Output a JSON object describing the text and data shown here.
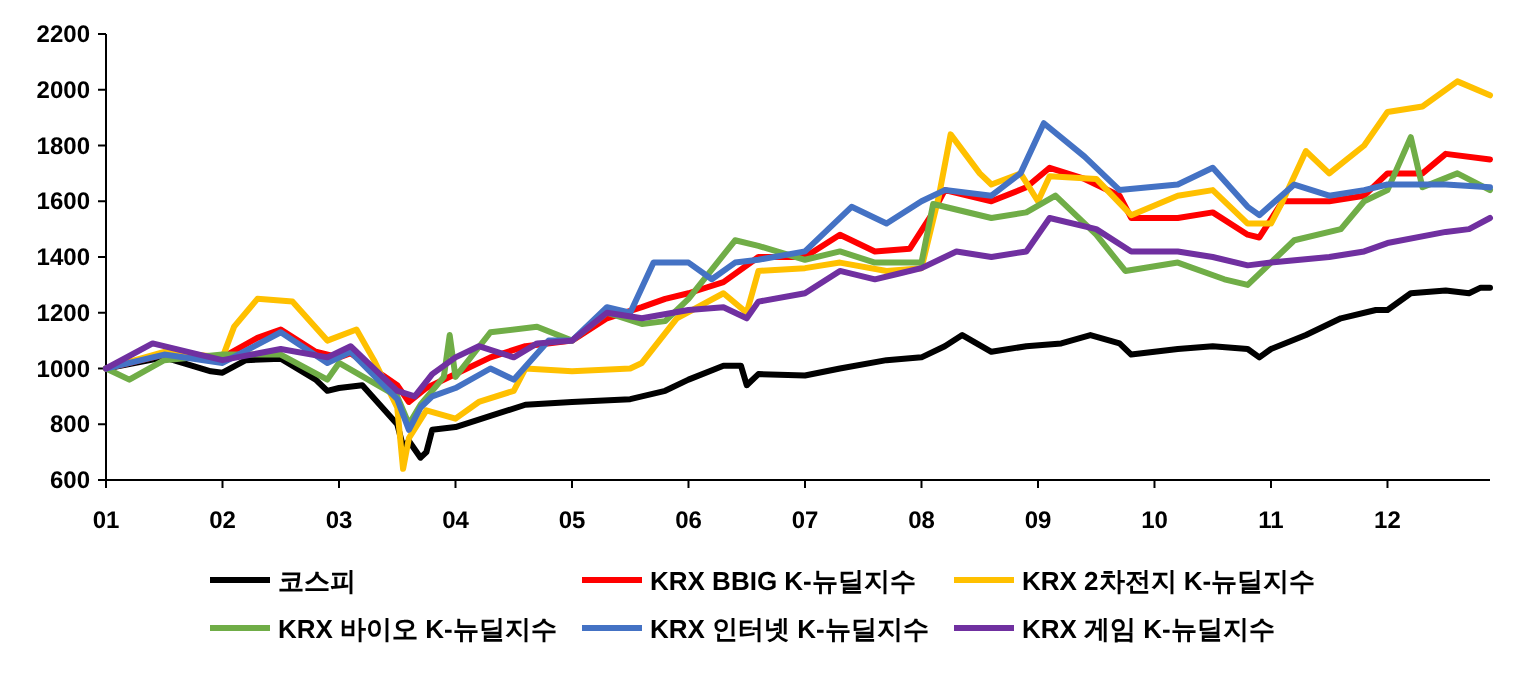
{
  "chart_data": {
    "type": "line",
    "xlim": [
      1,
      12.88
    ],
    "ylim": [
      600,
      2200
    ],
    "xticks": [
      {
        "value": 1,
        "label": "01"
      },
      {
        "value": 2,
        "label": "02"
      },
      {
        "value": 3,
        "label": "03"
      },
      {
        "value": 4,
        "label": "04"
      },
      {
        "value": 5,
        "label": "05"
      },
      {
        "value": 6,
        "label": "06"
      },
      {
        "value": 7,
        "label": "07"
      },
      {
        "value": 8,
        "label": "08"
      },
      {
        "value": 9,
        "label": "09"
      },
      {
        "value": 10,
        "label": "10"
      },
      {
        "value": 11,
        "label": "11"
      },
      {
        "value": 12,
        "label": "12"
      }
    ],
    "yticks": [
      600,
      800,
      1000,
      1200,
      1400,
      1600,
      1800,
      2000,
      2200
    ],
    "grid": false,
    "legend": "bottom",
    "marker": "none",
    "line_style": "solid",
    "series": [
      {
        "name": "코스피",
        "color": "#000000",
        "x": [
          1,
          1.5,
          1.9,
          2,
          2.2,
          2.5,
          2.8,
          2.9,
          3,
          3.2,
          3.5,
          3.55,
          3.6,
          3.7,
          3.75,
          3.8,
          4,
          4.3,
          4.6,
          5,
          5.5,
          5.8,
          6,
          6.3,
          6.45,
          6.5,
          6.6,
          7,
          7.3,
          7.7,
          8,
          8.2,
          8.35,
          8.6,
          8.9,
          9.2,
          9.45,
          9.7,
          9.8,
          10.2,
          10.5,
          10.8,
          10.9,
          11,
          11.3,
          11.6,
          11.9,
          12,
          12.2,
          12.5,
          12.7,
          12.8,
          12.88
        ],
        "values": [
          1000,
          1040,
          990,
          985,
          1030,
          1035,
          960,
          920,
          930,
          940,
          800,
          720,
          740,
          680,
          700,
          780,
          790,
          830,
          870,
          880,
          890,
          920,
          960,
          1010,
          1010,
          940,
          980,
          975,
          1000,
          1030,
          1040,
          1080,
          1120,
          1060,
          1080,
          1090,
          1120,
          1090,
          1050,
          1070,
          1080,
          1070,
          1040,
          1070,
          1120,
          1180,
          1210,
          1210,
          1270,
          1280,
          1270,
          1290,
          1290
        ]
      },
      {
        "name": "KRX BBIG K-뉴딜지수",
        "color": "#ff0000",
        "x": [
          1,
          1.5,
          2,
          2.3,
          2.5,
          2.8,
          3,
          3.1,
          3.5,
          3.6,
          3.75,
          4,
          4.3,
          4.6,
          5,
          5.3,
          5.6,
          5.8,
          6,
          6.3,
          6.6,
          7,
          7.3,
          7.6,
          7.9,
          8.1,
          8.2,
          8.6,
          8.9,
          9.1,
          9.4,
          9.7,
          9.8,
          10.2,
          10.5,
          10.8,
          10.9,
          11.1,
          11.5,
          11.8,
          12,
          12.3,
          12.5,
          12.88
        ],
        "values": [
          1000,
          1050,
          1040,
          1110,
          1140,
          1060,
          1040,
          1055,
          940,
          880,
          930,
          980,
          1040,
          1080,
          1100,
          1180,
          1220,
          1250,
          1270,
          1310,
          1400,
          1400,
          1480,
          1420,
          1430,
          1560,
          1640,
          1600,
          1650,
          1720,
          1680,
          1620,
          1540,
          1540,
          1560,
          1480,
          1470,
          1600,
          1600,
          1620,
          1700,
          1700,
          1770,
          1750
        ]
      },
      {
        "name": "KRX 2차전지 K-뉴딜지수",
        "color": "#ffc000",
        "x": [
          1,
          1.5,
          2,
          2.1,
          2.3,
          2.6,
          2.9,
          3.15,
          3.3,
          3.5,
          3.55,
          3.6,
          3.75,
          4,
          4.2,
          4.5,
          4.6,
          5,
          5.5,
          5.6,
          5.9,
          6.3,
          6.5,
          6.6,
          7,
          7.3,
          7.7,
          8,
          8.15,
          8.25,
          8.5,
          8.6,
          8.85,
          9,
          9.1,
          9.5,
          9.8,
          10.2,
          10.5,
          10.8,
          11,
          11.1,
          11.3,
          11.5,
          11.8,
          12,
          12.3,
          12.6,
          12.88
        ],
        "values": [
          1000,
          1060,
          1040,
          1150,
          1250,
          1240,
          1100,
          1140,
          1030,
          860,
          640,
          750,
          850,
          820,
          880,
          920,
          1000,
          990,
          1000,
          1020,
          1180,
          1270,
          1200,
          1350,
          1360,
          1380,
          1350,
          1360,
          1620,
          1840,
          1700,
          1660,
          1700,
          1600,
          1690,
          1680,
          1550,
          1620,
          1640,
          1520,
          1520,
          1600,
          1780,
          1700,
          1800,
          1920,
          1940,
          2030,
          1980
        ]
      },
      {
        "name": "KRX 바이오 K-뉴딜지수",
        "color": "#70ad47",
        "x": [
          1,
          1.2,
          1.5,
          2,
          2.5,
          2.9,
          3,
          3.5,
          3.6,
          3.7,
          3.9,
          3.95,
          4,
          4.3,
          4.7,
          5,
          5.3,
          5.6,
          5.8,
          6,
          6.4,
          6.6,
          7,
          7.3,
          7.6,
          8,
          8.1,
          8.6,
          8.9,
          9.15,
          9.5,
          9.75,
          10.2,
          10.6,
          10.8,
          11,
          11.2,
          11.6,
          11.8,
          12,
          12.2,
          12.3,
          12.6,
          12.88
        ],
        "values": [
          1000,
          960,
          1030,
          1050,
          1050,
          960,
          1020,
          900,
          800,
          870,
          970,
          1120,
          970,
          1130,
          1150,
          1100,
          1200,
          1160,
          1170,
          1250,
          1460,
          1440,
          1390,
          1420,
          1380,
          1380,
          1590,
          1540,
          1560,
          1620,
          1480,
          1350,
          1380,
          1320,
          1300,
          1380,
          1460,
          1500,
          1600,
          1640,
          1830,
          1650,
          1700,
          1640
        ]
      },
      {
        "name": "KRX 인터넷 K-뉴딜지수",
        "color": "#4472c4",
        "x": [
          1,
          1.5,
          2,
          2.5,
          2.9,
          3.1,
          3.5,
          3.6,
          3.7,
          3.8,
          4,
          4.3,
          4.5,
          4.8,
          5,
          5.3,
          5.5,
          5.7,
          6,
          6.2,
          6.4,
          6.6,
          7,
          7.4,
          7.7,
          8,
          8.2,
          8.6,
          8.85,
          9.05,
          9.4,
          9.7,
          10.2,
          10.5,
          10.8,
          10.9,
          11.2,
          11.5,
          11.8,
          12,
          12.5,
          12.88
        ],
        "values": [
          1000,
          1050,
          1020,
          1130,
          1020,
          1060,
          890,
          780,
          860,
          900,
          930,
          1000,
          960,
          1100,
          1100,
          1220,
          1200,
          1380,
          1380,
          1320,
          1380,
          1390,
          1420,
          1580,
          1520,
          1600,
          1640,
          1620,
          1700,
          1880,
          1760,
          1640,
          1660,
          1720,
          1580,
          1550,
          1660,
          1620,
          1640,
          1660,
          1660,
          1650
        ]
      },
      {
        "name": "KRX 게임 K-뉴딜지수",
        "color": "#7030a0",
        "x": [
          1,
          1.4,
          1.8,
          2,
          2.5,
          2.9,
          3.1,
          3.5,
          3.65,
          3.8,
          4,
          4.2,
          4.5,
          4.7,
          5,
          5.3,
          5.6,
          6,
          6.3,
          6.5,
          6.6,
          7,
          7.3,
          7.6,
          7.8,
          8,
          8.3,
          8.6,
          8.9,
          9.1,
          9.5,
          9.8,
          10.2,
          10.5,
          10.8,
          11,
          11.5,
          11.8,
          12,
          12.5,
          12.7,
          12.88
        ],
        "values": [
          1000,
          1090,
          1050,
          1030,
          1070,
          1040,
          1080,
          920,
          900,
          980,
          1040,
          1080,
          1040,
          1090,
          1100,
          1200,
          1180,
          1210,
          1220,
          1180,
          1240,
          1270,
          1350,
          1320,
          1340,
          1360,
          1420,
          1400,
          1420,
          1540,
          1500,
          1420,
          1420,
          1400,
          1370,
          1380,
          1400,
          1420,
          1450,
          1490,
          1500,
          1540
        ]
      }
    ]
  }
}
